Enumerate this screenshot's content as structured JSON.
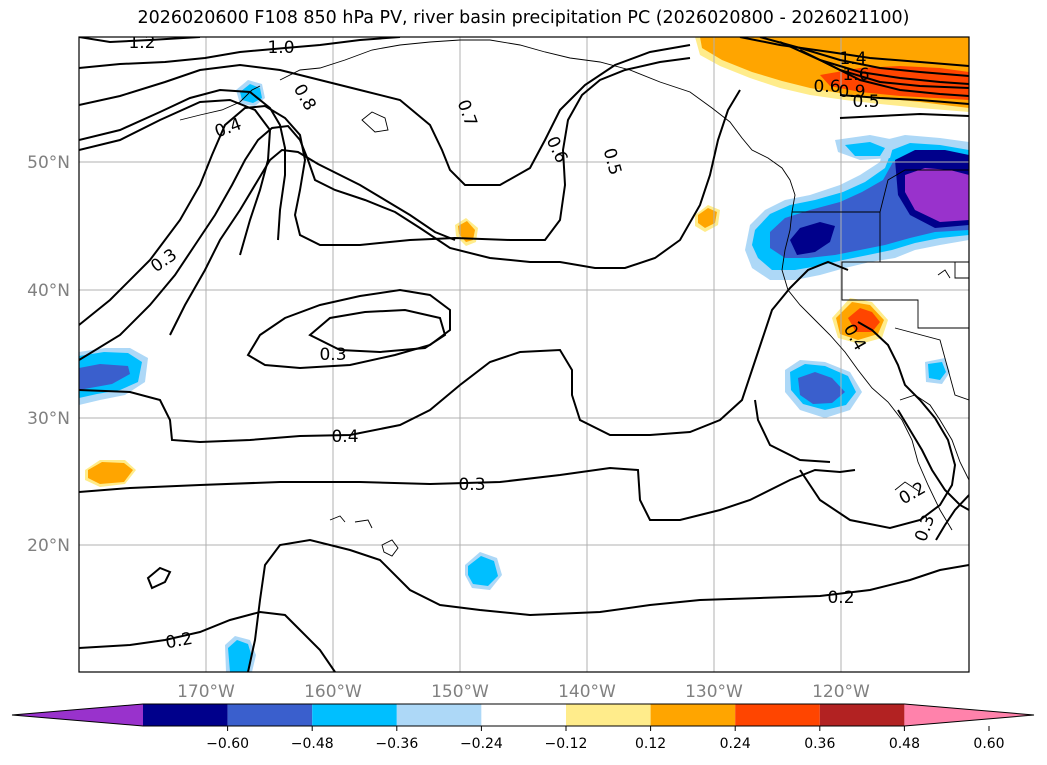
{
  "title": "2026020600 F108 850 hPa PV, river basin precipitation PC (2026020800 - 2026021100)",
  "map": {
    "lon_labels": [
      {
        "lon": -170,
        "text": "170°W"
      },
      {
        "lon": -160,
        "text": "160°W"
      },
      {
        "lon": -150,
        "text": "150°W"
      },
      {
        "lon": -140,
        "text": "140°W"
      },
      {
        "lon": -130,
        "text": "130°W"
      },
      {
        "lon": -120,
        "text": "120°W"
      }
    ],
    "lat_labels": [
      {
        "lat": 50,
        "text": "50°N"
      },
      {
        "lat": 40,
        "text": "40°N"
      },
      {
        "lat": 30,
        "text": "30°N"
      },
      {
        "lat": 20,
        "text": "20°N"
      }
    ],
    "contour_labels": [
      {
        "id": "1-2",
        "text": "1.2"
      },
      {
        "id": "1-0",
        "text": "1.0"
      },
      {
        "id": "0-8",
        "text": "0.8"
      },
      {
        "id": "0-4-nw",
        "text": "0.4"
      },
      {
        "id": "0-7",
        "text": "0.7"
      },
      {
        "id": "0-6",
        "text": "0.6"
      },
      {
        "id": "0-5",
        "text": "0.5"
      },
      {
        "id": "0-3-w",
        "text": "0.3"
      },
      {
        "id": "0-3-c",
        "text": "0.3"
      },
      {
        "id": "0-4-c",
        "text": "0.4"
      },
      {
        "id": "0-3-s",
        "text": "0.3"
      },
      {
        "id": "0-2-sw",
        "text": "0.2"
      },
      {
        "id": "0-2-s",
        "text": "0.2"
      },
      {
        "id": "0-4-e",
        "text": "0.4"
      },
      {
        "id": "0-2-e",
        "text": "0.2"
      },
      {
        "id": "0-3-e",
        "text": "0.3"
      },
      {
        "id": "1-4-ne",
        "text": "1.4"
      },
      {
        "id": "1-6-ne",
        "text": "1.6"
      },
      {
        "id": "0-6-ne",
        "text": "0.6"
      },
      {
        "id": "0-9-ne",
        "text": "0.9"
      },
      {
        "id": "0-5-ne",
        "text": "0.5"
      }
    ]
  },
  "colorbar": {
    "ticks": [
      "−0.60",
      "−0.48",
      "−0.36",
      "−0.24",
      "−0.12",
      "0.12",
      "0.24",
      "0.36",
      "0.48",
      "0.60"
    ],
    "colors": [
      "#9932cc",
      "#00008b",
      "#3a5fcd",
      "#00bfff",
      "#add8f7",
      "#ffffff",
      "#ffec8b",
      "#ffa500",
      "#ff4500",
      "#b22222",
      "#ff82ab"
    ]
  }
}
